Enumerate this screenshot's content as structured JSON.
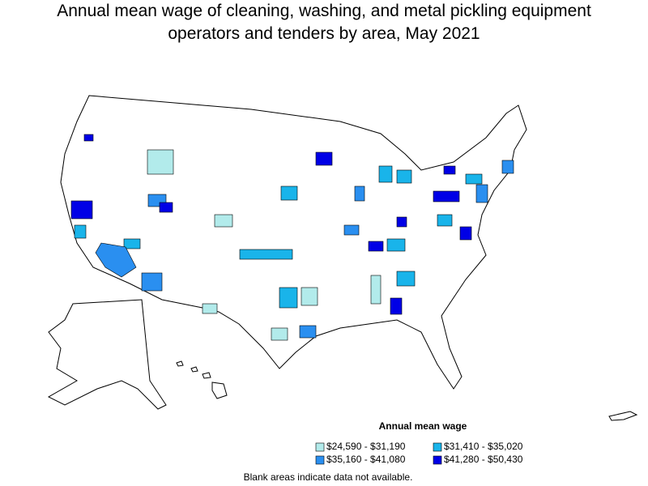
{
  "header": {
    "title": [
      "Annual mean wage of cleaning, washing, and metal pickling equipment",
      "operators and tenders by area, May 2021"
    ]
  },
  "legend": {
    "title": "Annual mean wage",
    "items": [
      {
        "label": "$24,590 - $31,190",
        "color": "#b2ebeb"
      },
      {
        "label": "$31,410 - $35,020",
        "color": "#19b4ea"
      },
      {
        "label": "$35,160 - $41,080",
        "color": "#2a8ff0"
      },
      {
        "label": "$41,280 - $50,430",
        "color": "#0000e6"
      }
    ]
  },
  "footnote": "Blank areas indicate data not available."
}
